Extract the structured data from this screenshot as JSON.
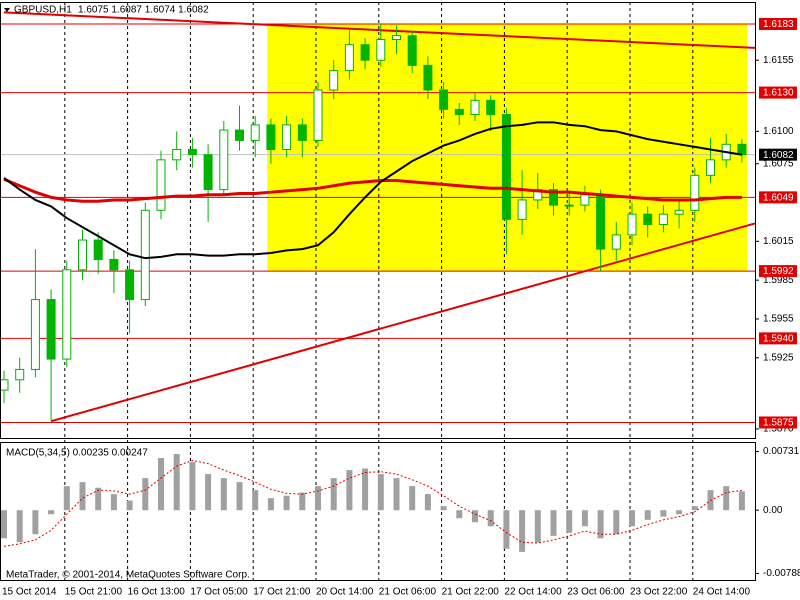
{
  "chart_data": {
    "type": "candlestick",
    "title": "GBPUSD,H1",
    "subtitle": "1.6075 1.6087 1.6074 1.6082",
    "annotation": "MetaTrader, © 2001-2014, MetaQuotes Software Corp.",
    "categories": [
      "15 Oct 2014",
      null,
      null,
      null,
      "15 Oct 21:00",
      null,
      null,
      null,
      "16 Oct 13:00",
      null,
      null,
      null,
      "17 Oct 05:00",
      null,
      null,
      null,
      "17 Oct 21:00",
      null,
      null,
      null,
      "20 Oct 14:00",
      null,
      null,
      null,
      "21 Oct 06:00",
      null,
      null,
      null,
      "21 Oct 22:00",
      null,
      null,
      null,
      "22 Oct 14:00",
      null,
      null,
      null,
      "23 Oct 06:00",
      null,
      null,
      null,
      "23 Oct 22:00",
      null,
      null,
      null,
      "24 Oct 14:00",
      null,
      null,
      null
    ],
    "open": [
      1.59,
      1.5908,
      1.5916,
      1.597,
      1.5924,
      1.5993,
      1.6016,
      1.6001,
      1.5993,
      1.597,
      1.6039,
      1.6078,
      1.6086,
      1.6082,
      1.6055,
      1.6101,
      1.6093,
      1.6105,
      1.6086,
      1.6105,
      1.6093,
      1.6132,
      1.6147,
      1.6167,
      1.6155,
      1.6171,
      1.6174,
      1.6151,
      1.6132,
      1.6117,
      1.6113,
      1.6124,
      1.6113,
      1.6032,
      1.6047,
      1.6055,
      1.6043,
      1.6043,
      1.6051,
      1.6009,
      1.602,
      1.6036,
      1.6028,
      1.6036,
      1.6039,
      1.6066,
      1.6078,
      1.609
    ],
    "high": [
      1.5915,
      1.5925,
      1.6009,
      1.5978,
      1.6,
      1.6024,
      1.6022,
      1.6008,
      1.6,
      1.6045,
      1.6085,
      1.61,
      1.6095,
      1.609,
      1.6108,
      1.612,
      1.6112,
      1.611,
      1.6112,
      1.611,
      1.6138,
      1.6155,
      1.6178,
      1.6172,
      1.6183,
      1.6182,
      1.6178,
      1.6158,
      1.6138,
      1.6122,
      1.613,
      1.6128,
      1.6118,
      1.607,
      1.6068,
      1.606,
      1.6052,
      1.6058,
      1.6055,
      1.603,
      1.6045,
      1.6042,
      1.6043,
      1.6048,
      1.6072,
      1.6095,
      1.6098,
      1.6094
    ],
    "low": [
      1.589,
      1.5898,
      1.591,
      1.5876,
      1.5918,
      1.5985,
      1.599,
      1.5975,
      1.5944,
      1.5965,
      1.6032,
      1.607,
      1.6072,
      1.603,
      1.605,
      1.6085,
      1.608,
      1.6075,
      1.608,
      1.608,
      1.6088,
      1.6125,
      1.614,
      1.6148,
      1.615,
      1.616,
      1.6145,
      1.6125,
      1.611,
      1.6105,
      1.6108,
      1.61,
      1.6005,
      1.602,
      1.604,
      1.6035,
      1.6035,
      1.6038,
      1.5992,
      1.6,
      1.6012,
      1.6018,
      1.6022,
      1.6025,
      1.603,
      1.606,
      1.6072,
      1.6076
    ],
    "close": [
      1.5908,
      1.5916,
      1.597,
      1.5924,
      1.5993,
      1.6016,
      1.6001,
      1.5993,
      1.597,
      1.6039,
      1.6078,
      1.6086,
      1.6082,
      1.6055,
      1.6101,
      1.6093,
      1.6105,
      1.6086,
      1.6105,
      1.6093,
      1.6132,
      1.6147,
      1.6167,
      1.6155,
      1.6171,
      1.6174,
      1.6151,
      1.6132,
      1.6117,
      1.6113,
      1.6124,
      1.6113,
      1.6032,
      1.6047,
      1.6055,
      1.6043,
      1.6043,
      1.6051,
      1.6009,
      1.602,
      1.6036,
      1.6028,
      1.6036,
      1.6039,
      1.6066,
      1.6078,
      1.609,
      1.6082
    ],
    "up_color": "#ffffff",
    "down_color": "#00b400",
    "wick_color": "#00b400",
    "series": [
      {
        "color": "#e00000",
        "width": 3,
        "values": [
          1.6063,
          1.6058,
          1.6053,
          1.6049,
          1.6047,
          1.6046,
          1.6046,
          1.6047,
          1.6047,
          1.6048,
          1.6049,
          1.605,
          1.605,
          1.6051,
          1.6051,
          1.6052,
          1.6052,
          1.6053,
          1.6054,
          1.6055,
          1.6056,
          1.6058,
          1.606,
          1.6061,
          1.6062,
          1.6062,
          1.6061,
          1.606,
          1.6059,
          1.6058,
          1.6057,
          1.6056,
          1.6056,
          1.6055,
          1.6054,
          1.6053,
          1.6053,
          1.6052,
          1.6051,
          1.605,
          1.6049,
          1.6048,
          1.6047,
          1.6047,
          1.6047,
          1.6048,
          1.6049,
          1.6049
        ]
      },
      {
        "color": "#000000",
        "width": 2,
        "values": [
          1.6064,
          1.6055,
          1.6047,
          1.6042,
          1.6033,
          1.6026,
          1.6019,
          1.6012,
          1.6005,
          1.6002,
          1.6003,
          1.6005,
          1.6005,
          1.6004,
          1.6004,
          1.6005,
          1.6005,
          1.6006,
          1.6008,
          1.6009,
          1.6012,
          1.6022,
          1.6036,
          1.6049,
          1.6061,
          1.6069,
          1.6077,
          1.6083,
          1.6089,
          1.6093,
          1.6098,
          1.6102,
          1.6104,
          1.6105,
          1.6107,
          1.6107,
          1.6105,
          1.6104,
          1.6101,
          1.61,
          1.6097,
          1.6094,
          1.6092,
          1.609,
          1.6088,
          1.6086,
          1.6084,
          1.6082
        ]
      }
    ],
    "ylim": [
      1.5863,
      1.62
    ],
    "yticks": [
      1.6155,
      {
        "value": 1.61,
        "label": "1.6100"
      },
      1.6075,
      1.6015,
      1.5985,
      1.5955,
      1.5925,
      {
        "value": 1.587,
        "label": "1.5870"
      }
    ],
    "levels": [
      1.6183,
      {
        "value": 1.613,
        "label": "1.6130"
      },
      1.6049,
      1.5992,
      {
        "value": 1.594,
        "label": "1.5940"
      },
      1.5875
    ],
    "level_color": "#e00000",
    "current_price": 1.6082,
    "zone": {
      "ylim": [
        1.5992,
        1.6183
      ],
      "x_from": "17 Oct 21:00",
      "color": "#ffff00"
    },
    "trendlines": [
      {
        "x": [
          0,
          47
        ],
        "y": [
          1.6192,
          1.6165
        ]
      },
      {
        "x": [
          3,
          47
        ],
        "y": [
          1.5876,
          1.6026
        ]
      }
    ],
    "macd": {
      "title": "MACD(5,34,5) 0.00235 0.00247",
      "values": [
        -0.0035,
        -0.004,
        -0.003,
        -0.0005,
        0.003,
        0.0035,
        0.0028,
        0.002,
        0.0012,
        0.004,
        0.0065,
        0.007,
        0.006,
        0.0045,
        0.004,
        0.0035,
        0.0025,
        0.0015,
        0.0018,
        0.0022,
        0.003,
        0.004,
        0.005,
        0.0052,
        0.0045,
        0.004,
        0.003,
        0.002,
        0.0005,
        -0.001,
        -0.0015,
        -0.002,
        -0.0048,
        -0.0052,
        -0.004,
        -0.0032,
        -0.0028,
        -0.002,
        -0.0035,
        -0.003,
        -0.002,
        -0.0012,
        -0.0008,
        -0.0005,
        0.0005,
        0.0025,
        0.003,
        0.00235
      ],
      "signal": [
        -0.0045,
        -0.0042,
        -0.0037,
        -0.0025,
        -0.0005,
        0.0015,
        0.0025,
        0.0024,
        0.002,
        0.0025,
        0.004,
        0.0055,
        0.0062,
        0.0058,
        0.005,
        0.0043,
        0.0035,
        0.0026,
        0.0021,
        0.002,
        0.0024,
        0.003,
        0.004,
        0.0047,
        0.0048,
        0.0045,
        0.0038,
        0.003,
        0.0018,
        0.0005,
        -0.0005,
        -0.0013,
        -0.0028,
        -0.004,
        -0.0041,
        -0.0037,
        -0.0032,
        -0.0026,
        -0.003,
        -0.003,
        -0.0025,
        -0.0018,
        -0.0012,
        -0.0008,
        -0.0002,
        0.0012,
        0.0022,
        0.00247
      ],
      "color": "#a0a0a0",
      "signal_color": "#e00000",
      "ylim": [
        -0.0087,
        0.0085
      ],
      "yticks": [
        0.00731,
        {
          "value": 0,
          "label": "0.00"
        },
        -0.00788
      ]
    }
  }
}
